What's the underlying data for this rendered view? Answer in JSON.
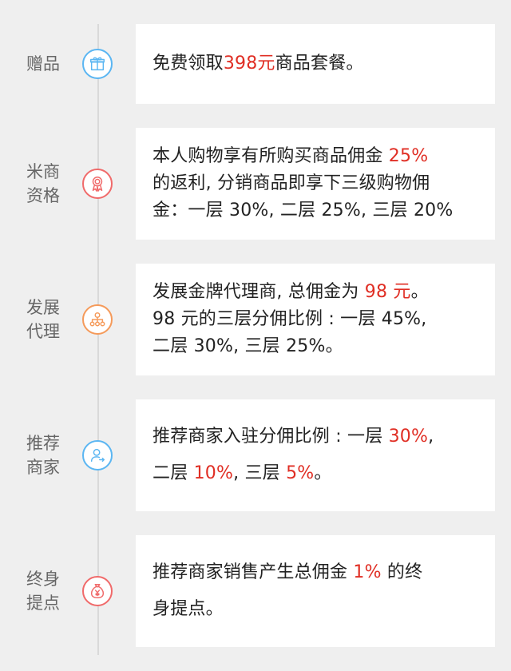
{
  "colors": {
    "background": "#efefef",
    "highlight": "#e02e24",
    "label": "#666666",
    "icon_blue": "#5bb6f2",
    "icon_red": "#f06a6a",
    "icon_orange": "#f59a5a"
  },
  "rows": [
    {
      "label": "赠品",
      "icon": "gift-icon",
      "lines": [
        [
          "免费领取",
          "398元",
          "商品套餐。"
        ]
      ]
    },
    {
      "label": "米商\n资格",
      "icon": "award-ribbon-icon",
      "lines": [
        [
          "本人购物享有所购买商品佣金 ",
          "25%"
        ],
        [
          "的返利, 分销商品即享下三级购物佣"
        ],
        [
          "金：一层 30%, 二层 25%, 三层 20%"
        ]
      ]
    },
    {
      "label": "发展\n代理",
      "icon": "hierarchy-icon",
      "lines": [
        [
          "发展金牌代理商, 总佣金为 ",
          "98 元",
          "。"
        ],
        [
          "98 元的三层分佣比例 : 一层 45%,"
        ],
        [
          "二层 30%, 三层 25%。"
        ]
      ]
    },
    {
      "label": "推荐\n商家",
      "icon": "user-referral-icon",
      "lines": [
        [
          "推荐商家入驻分佣比例 : 一层 ",
          "30%",
          ","
        ],
        [
          "二层 ",
          "10%",
          ", 三层 ",
          "5%",
          "。"
        ]
      ]
    },
    {
      "label": "终身\n提点",
      "icon": "yen-money-bag-icon",
      "lines": [
        [
          "推荐商家销售产生总佣金 ",
          "1%",
          " 的终"
        ],
        [
          "身提点。"
        ]
      ]
    }
  ]
}
